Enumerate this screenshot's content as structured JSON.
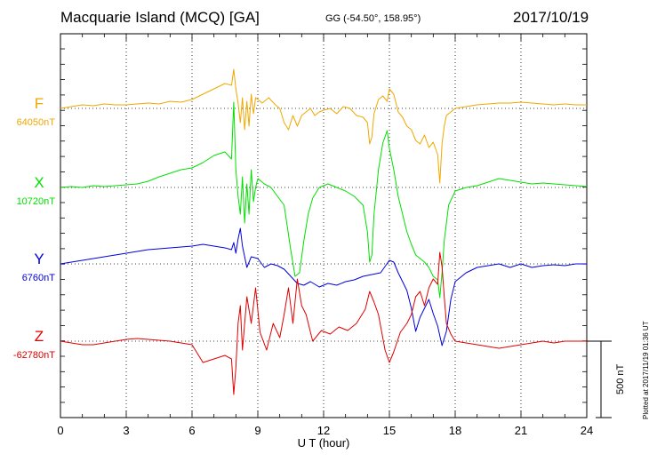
{
  "header": {
    "title": "Macquarie Island (MCQ)  [GA]",
    "coordinates": "GG (-54.50°, 158.95°)",
    "date": "2017/10/19"
  },
  "footer": {
    "plotted": "Plotted at 2017/11/19 01:36 UT"
  },
  "scale_bar": {
    "label": "500 nT",
    "value_nT": 500
  },
  "chart_data": {
    "type": "line",
    "xlabel": "U T (hour)",
    "xlim": [
      0,
      24
    ],
    "xticks": [
      0,
      3,
      6,
      9,
      12,
      15,
      18,
      21,
      24
    ],
    "grid": true,
    "series": [
      {
        "name": "F",
        "baseline_label": "64050nT",
        "baseline_nT": 64050,
        "color": "#f0a800",
        "x": [
          0,
          0.5,
          1,
          1.5,
          2,
          2.5,
          3,
          3.5,
          4,
          4.5,
          5,
          5.5,
          6,
          6.5,
          7,
          7.5,
          7.8,
          7.9,
          8.0,
          8.1,
          8.2,
          8.3,
          8.4,
          8.5,
          8.6,
          8.7,
          8.8,
          8.9,
          9.0,
          9.2,
          9.5,
          9.8,
          10.0,
          10.2,
          10.4,
          10.6,
          10.8,
          11.0,
          11.2,
          11.4,
          11.6,
          11.8,
          12.0,
          12.3,
          12.6,
          12.9,
          13.2,
          13.5,
          13.8,
          14.0,
          14.1,
          14.2,
          14.3,
          14.5,
          14.7,
          14.9,
          15.0,
          15.2,
          15.4,
          15.6,
          15.8,
          16.0,
          16.2,
          16.4,
          16.6,
          16.8,
          17.0,
          17.2,
          17.3,
          17.4,
          17.5,
          17.6,
          17.8,
          18.0,
          18.5,
          19,
          19.5,
          20,
          20.5,
          21,
          21.5,
          22,
          22.5,
          23,
          23.5,
          24
        ],
        "y": [
          0,
          10,
          20,
          15,
          25,
          20,
          20,
          25,
          30,
          25,
          40,
          35,
          50,
          80,
          110,
          140,
          130,
          220,
          110,
          30,
          -80,
          60,
          -120,
          40,
          -100,
          80,
          -30,
          60,
          50,
          30,
          60,
          20,
          0,
          -80,
          -120,
          -40,
          -100,
          -40,
          -20,
          0,
          -40,
          -20,
          -10,
          0,
          -30,
          10,
          0,
          -40,
          -50,
          -80,
          -200,
          -160,
          -30,
          50,
          70,
          40,
          110,
          80,
          -20,
          -50,
          -100,
          -120,
          -180,
          -200,
          -150,
          -220,
          -190,
          -260,
          -420,
          -200,
          -100,
          -40,
          -20,
          0,
          10,
          20,
          25,
          30,
          30,
          35,
          30,
          25,
          20,
          25,
          20,
          20
        ]
      },
      {
        "name": "X",
        "baseline_label": "10720nT",
        "baseline_nT": 10720,
        "color": "#00e000",
        "x": [
          0,
          0.5,
          1,
          1.5,
          2,
          2.5,
          3,
          3.5,
          4,
          4.5,
          5,
          5.5,
          6,
          6.5,
          7,
          7.5,
          7.8,
          7.9,
          8.0,
          8.1,
          8.2,
          8.3,
          8.4,
          8.5,
          8.6,
          8.7,
          8.8,
          8.9,
          9.0,
          9.3,
          9.6,
          9.9,
          10.2,
          10.5,
          10.7,
          10.9,
          11.1,
          11.3,
          11.5,
          11.8,
          12.2,
          12.6,
          13.0,
          13.4,
          13.8,
          14.0,
          14.1,
          14.2,
          14.3,
          14.5,
          14.7,
          14.9,
          15.0,
          15.2,
          15.4,
          15.6,
          15.8,
          16.0,
          16.2,
          16.4,
          16.6,
          16.8,
          17.0,
          17.2,
          17.3,
          17.4,
          17.5,
          17.7,
          18.0,
          18.5,
          19,
          19.5,
          20,
          20.5,
          21,
          21.5,
          22,
          22.5,
          23,
          23.5,
          24
        ],
        "y": [
          0,
          5,
          0,
          10,
          5,
          10,
          15,
          20,
          35,
          60,
          80,
          100,
          110,
          140,
          180,
          200,
          160,
          480,
          100,
          -50,
          -150,
          60,
          -200,
          20,
          -150,
          100,
          -80,
          0,
          50,
          20,
          0,
          -50,
          -100,
          -350,
          -500,
          -480,
          -300,
          -150,
          -60,
          0,
          20,
          0,
          -20,
          -50,
          -100,
          -250,
          -420,
          -380,
          -150,
          100,
          250,
          320,
          220,
          100,
          -50,
          -150,
          -250,
          -320,
          -380,
          -400,
          -420,
          -450,
          -500,
          -520,
          -620,
          -480,
          -300,
          -100,
          -20,
          0,
          10,
          30,
          50,
          40,
          30,
          20,
          25,
          20,
          15,
          10,
          5
        ]
      },
      {
        "name": "Y",
        "baseline_label": "6760nT",
        "baseline_nT": 6760,
        "color": "#0000e0",
        "x": [
          0,
          0.5,
          1,
          1.5,
          2,
          2.5,
          3,
          3.5,
          4,
          4.5,
          5,
          5.5,
          6,
          6.5,
          7,
          7.5,
          7.8,
          7.9,
          8.0,
          8.1,
          8.2,
          8.3,
          8.5,
          8.7,
          9.0,
          9.3,
          9.6,
          9.9,
          10.2,
          10.5,
          10.8,
          11.1,
          11.4,
          11.8,
          12.2,
          12.6,
          13.0,
          13.4,
          13.8,
          14.2,
          14.6,
          15.0,
          15.2,
          15.4,
          15.6,
          15.8,
          16.0,
          16.2,
          16.4,
          16.6,
          16.8,
          17.0,
          17.2,
          17.4,
          17.6,
          17.8,
          18.0,
          18.5,
          19,
          19.5,
          20,
          20.5,
          21,
          21.5,
          22,
          22.5,
          23,
          23.5,
          24
        ],
        "y": [
          0,
          10,
          20,
          30,
          40,
          50,
          60,
          70,
          80,
          85,
          90,
          95,
          100,
          110,
          100,
          90,
          80,
          120,
          60,
          140,
          200,
          100,
          -20,
          40,
          30,
          -20,
          0,
          -10,
          -30,
          -70,
          -110,
          -120,
          -100,
          -130,
          -110,
          -120,
          -100,
          -90,
          -70,
          -60,
          -50,
          20,
          10,
          -50,
          -100,
          -150,
          -250,
          -380,
          -300,
          -250,
          -200,
          -280,
          -350,
          -460,
          -380,
          -200,
          -100,
          -50,
          -20,
          -10,
          0,
          -20,
          0,
          -20,
          -10,
          -5,
          -10,
          0,
          0
        ]
      },
      {
        "name": "Z",
        "baseline_label": "-62780nT",
        "baseline_nT": -62780,
        "color": "#e00000",
        "x": [
          0,
          0.5,
          1,
          1.5,
          2,
          2.5,
          3,
          3.5,
          4,
          4.5,
          5,
          5.5,
          6,
          6.5,
          7,
          7.5,
          7.8,
          7.9,
          8.0,
          8.1,
          8.2,
          8.3,
          8.5,
          8.7,
          8.9,
          9.1,
          9.4,
          9.7,
          10.0,
          10.2,
          10.4,
          10.6,
          10.8,
          11.0,
          11.2,
          11.5,
          11.9,
          12.3,
          12.7,
          13.1,
          13.5,
          13.9,
          14.1,
          14.3,
          14.5,
          14.8,
          15.0,
          15.2,
          15.5,
          15.8,
          16.0,
          16.2,
          16.4,
          16.6,
          16.8,
          17.0,
          17.2,
          17.3,
          17.4,
          17.5,
          17.6,
          17.8,
          18.0,
          18.5,
          19,
          19.5,
          20,
          20.5,
          21,
          21.5,
          22,
          22.5,
          23,
          23.5,
          24
        ],
        "y": [
          0,
          -10,
          -20,
          -20,
          -10,
          0,
          10,
          15,
          10,
          5,
          0,
          -10,
          -20,
          -120,
          -100,
          -80,
          -100,
          -300,
          -150,
          100,
          200,
          -50,
          250,
          100,
          300,
          50,
          -50,
          100,
          20,
          150,
          300,
          100,
          350,
          200,
          150,
          0,
          60,
          40,
          80,
          60,
          100,
          180,
          280,
          220,
          150,
          -50,
          -120,
          -60,
          50,
          100,
          150,
          250,
          280,
          200,
          300,
          350,
          320,
          500,
          420,
          250,
          100,
          40,
          0,
          -10,
          -20,
          -30,
          -40,
          -30,
          -20,
          -10,
          0,
          -10,
          0,
          0,
          0
        ]
      }
    ]
  }
}
